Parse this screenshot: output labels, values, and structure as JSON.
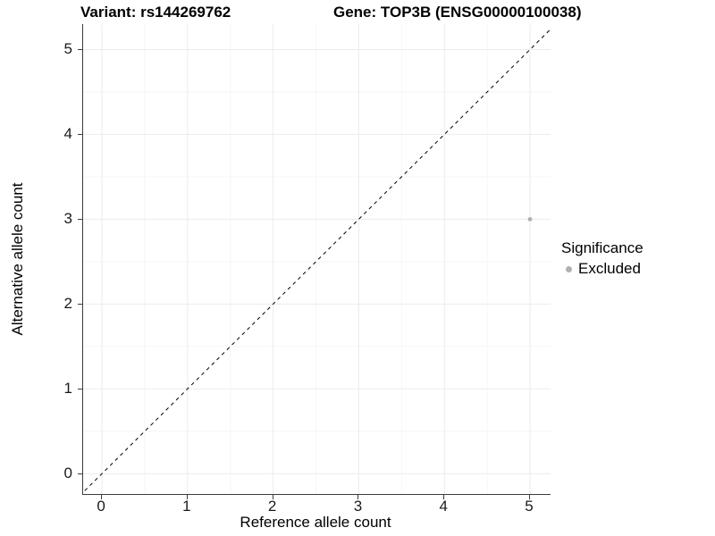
{
  "header": {
    "variant_title": "Variant: rs144269762",
    "gene_title": "Gene: TOP3B (ENSG00000100038)"
  },
  "chart_data": {
    "type": "scatter",
    "title": "Variant: rs144269762   Gene: TOP3B (ENSG00000100038)",
    "xlabel": "Reference allele count",
    "ylabel": "Alternative allele count",
    "xlim": [
      -0.22,
      5.24
    ],
    "ylim": [
      -0.24,
      5.3
    ],
    "x_tick_values": [
      0,
      1,
      2,
      3,
      4,
      5
    ],
    "x_tick_labels": [
      "0",
      "1",
      "2",
      "3",
      "4",
      "5"
    ],
    "y_tick_values": [
      0,
      1,
      2,
      3,
      4,
      5
    ],
    "y_tick_labels": [
      "0",
      "1",
      "2",
      "3",
      "4",
      "5"
    ],
    "x_minor_gridlines": [
      0.5,
      1.5,
      2.5,
      3.5,
      4.5
    ],
    "y_minor_gridlines": [
      0.5,
      1.5,
      2.5,
      3.5,
      4.5
    ],
    "grid": true,
    "series": [
      {
        "name": "Excluded",
        "points": [
          {
            "x": 5,
            "y": 3
          }
        ]
      }
    ],
    "reference_line": {
      "slope": 1,
      "intercept": 0,
      "style": "dashed"
    },
    "legend": {
      "title": "Significance",
      "position": "right",
      "items": [
        {
          "label": "Excluded",
          "color": "#b0b0b0"
        }
      ]
    }
  },
  "colors": {
    "point": "#b0b0b0",
    "grid_major": "#ebebeb",
    "grid_minor": "#f6f6f6",
    "axis_line": "#3c3c3c",
    "reference_line": "#000000",
    "text": "#000000",
    "background": "#ffffff"
  }
}
